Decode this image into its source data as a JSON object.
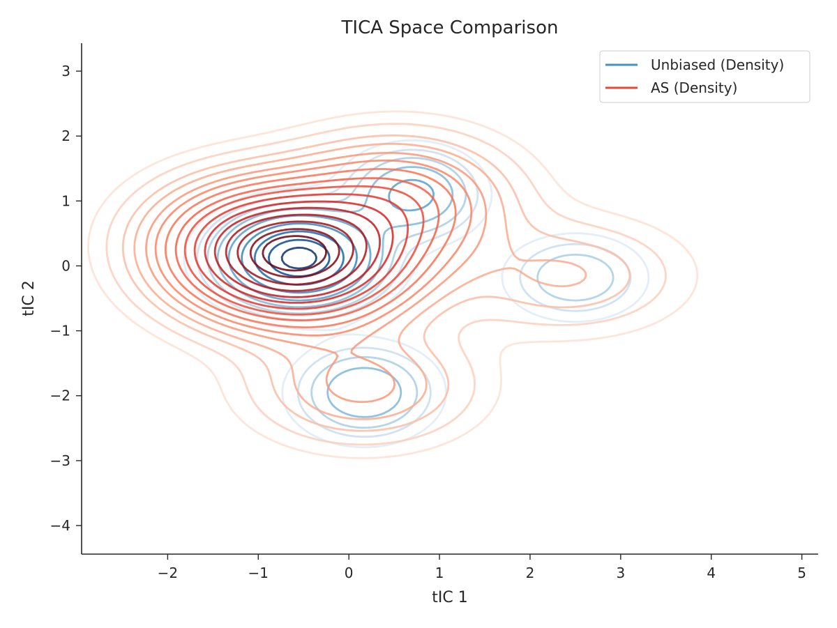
{
  "chart_data": {
    "type": "contour",
    "title": "TICA Space Comparison",
    "xlabel": "tIC 1",
    "ylabel": "tIC 2",
    "xlim": [
      -2.95,
      5.18
    ],
    "ylim": [
      -4.44,
      3.43
    ],
    "xticks": [
      -2,
      -1,
      0,
      1,
      2,
      3,
      4,
      5
    ],
    "yticks": [
      -4,
      -3,
      -2,
      -1,
      0,
      1,
      2,
      3
    ],
    "xtick_labels": [
      "−2",
      "−1",
      "0",
      "1",
      "2",
      "3",
      "4",
      "5"
    ],
    "ytick_labels": [
      "−4",
      "−3",
      "−2",
      "−1",
      "0",
      "1",
      "2",
      "3"
    ],
    "grid": false,
    "legend_position": "top-right",
    "series": [
      {
        "name": "Unbiased (Density)",
        "legend_color": "#4292c6",
        "colormap": "Blues",
        "modes": [
          {
            "center": [
              -0.55,
              0.12
            ],
            "weight": 1.0,
            "sigma": [
              0.5,
              0.42
            ]
          },
          {
            "center": [
              0.7,
              1.1
            ],
            "weight": 0.35,
            "sigma": [
              0.42,
              0.4
            ]
          },
          {
            "center": [
              0.17,
              -1.95
            ],
            "weight": 0.3,
            "sigma": [
              0.45,
              0.42
            ]
          },
          {
            "center": [
              2.5,
              -0.18
            ],
            "weight": 0.2,
            "sigma": [
              0.45,
              0.38
            ]
          }
        ],
        "levels": [
          0.04,
          0.08,
          0.13,
          0.2,
          0.3,
          0.45,
          0.62,
          0.8,
          0.93
        ]
      },
      {
        "name": "AS (Density)",
        "legend_color": "#e34a33",
        "colormap": "Reds",
        "modes": [
          {
            "center": [
              -0.55,
              0.12
            ],
            "weight": 1.0,
            "sigma": [
              0.78,
              0.62
            ]
          },
          {
            "center": [
              0.55,
              1.0
            ],
            "weight": 0.32,
            "sigma": [
              0.75,
              0.6
            ]
          },
          {
            "center": [
              -1.2,
              0.45
            ],
            "weight": 0.22,
            "sigma": [
              0.7,
              0.6
            ]
          },
          {
            "center": [
              0.15,
              -1.85
            ],
            "weight": 0.18,
            "sigma": [
              0.75,
              0.55
            ]
          },
          {
            "center": [
              2.4,
              -0.15
            ],
            "weight": 0.12,
            "sigma": [
              0.8,
              0.55
            ]
          }
        ],
        "levels": [
          0.02,
          0.04,
          0.07,
          0.1,
          0.14,
          0.18,
          0.23,
          0.29,
          0.35,
          0.42,
          0.5,
          0.58,
          0.67,
          0.76,
          0.85,
          0.92
        ]
      }
    ]
  }
}
